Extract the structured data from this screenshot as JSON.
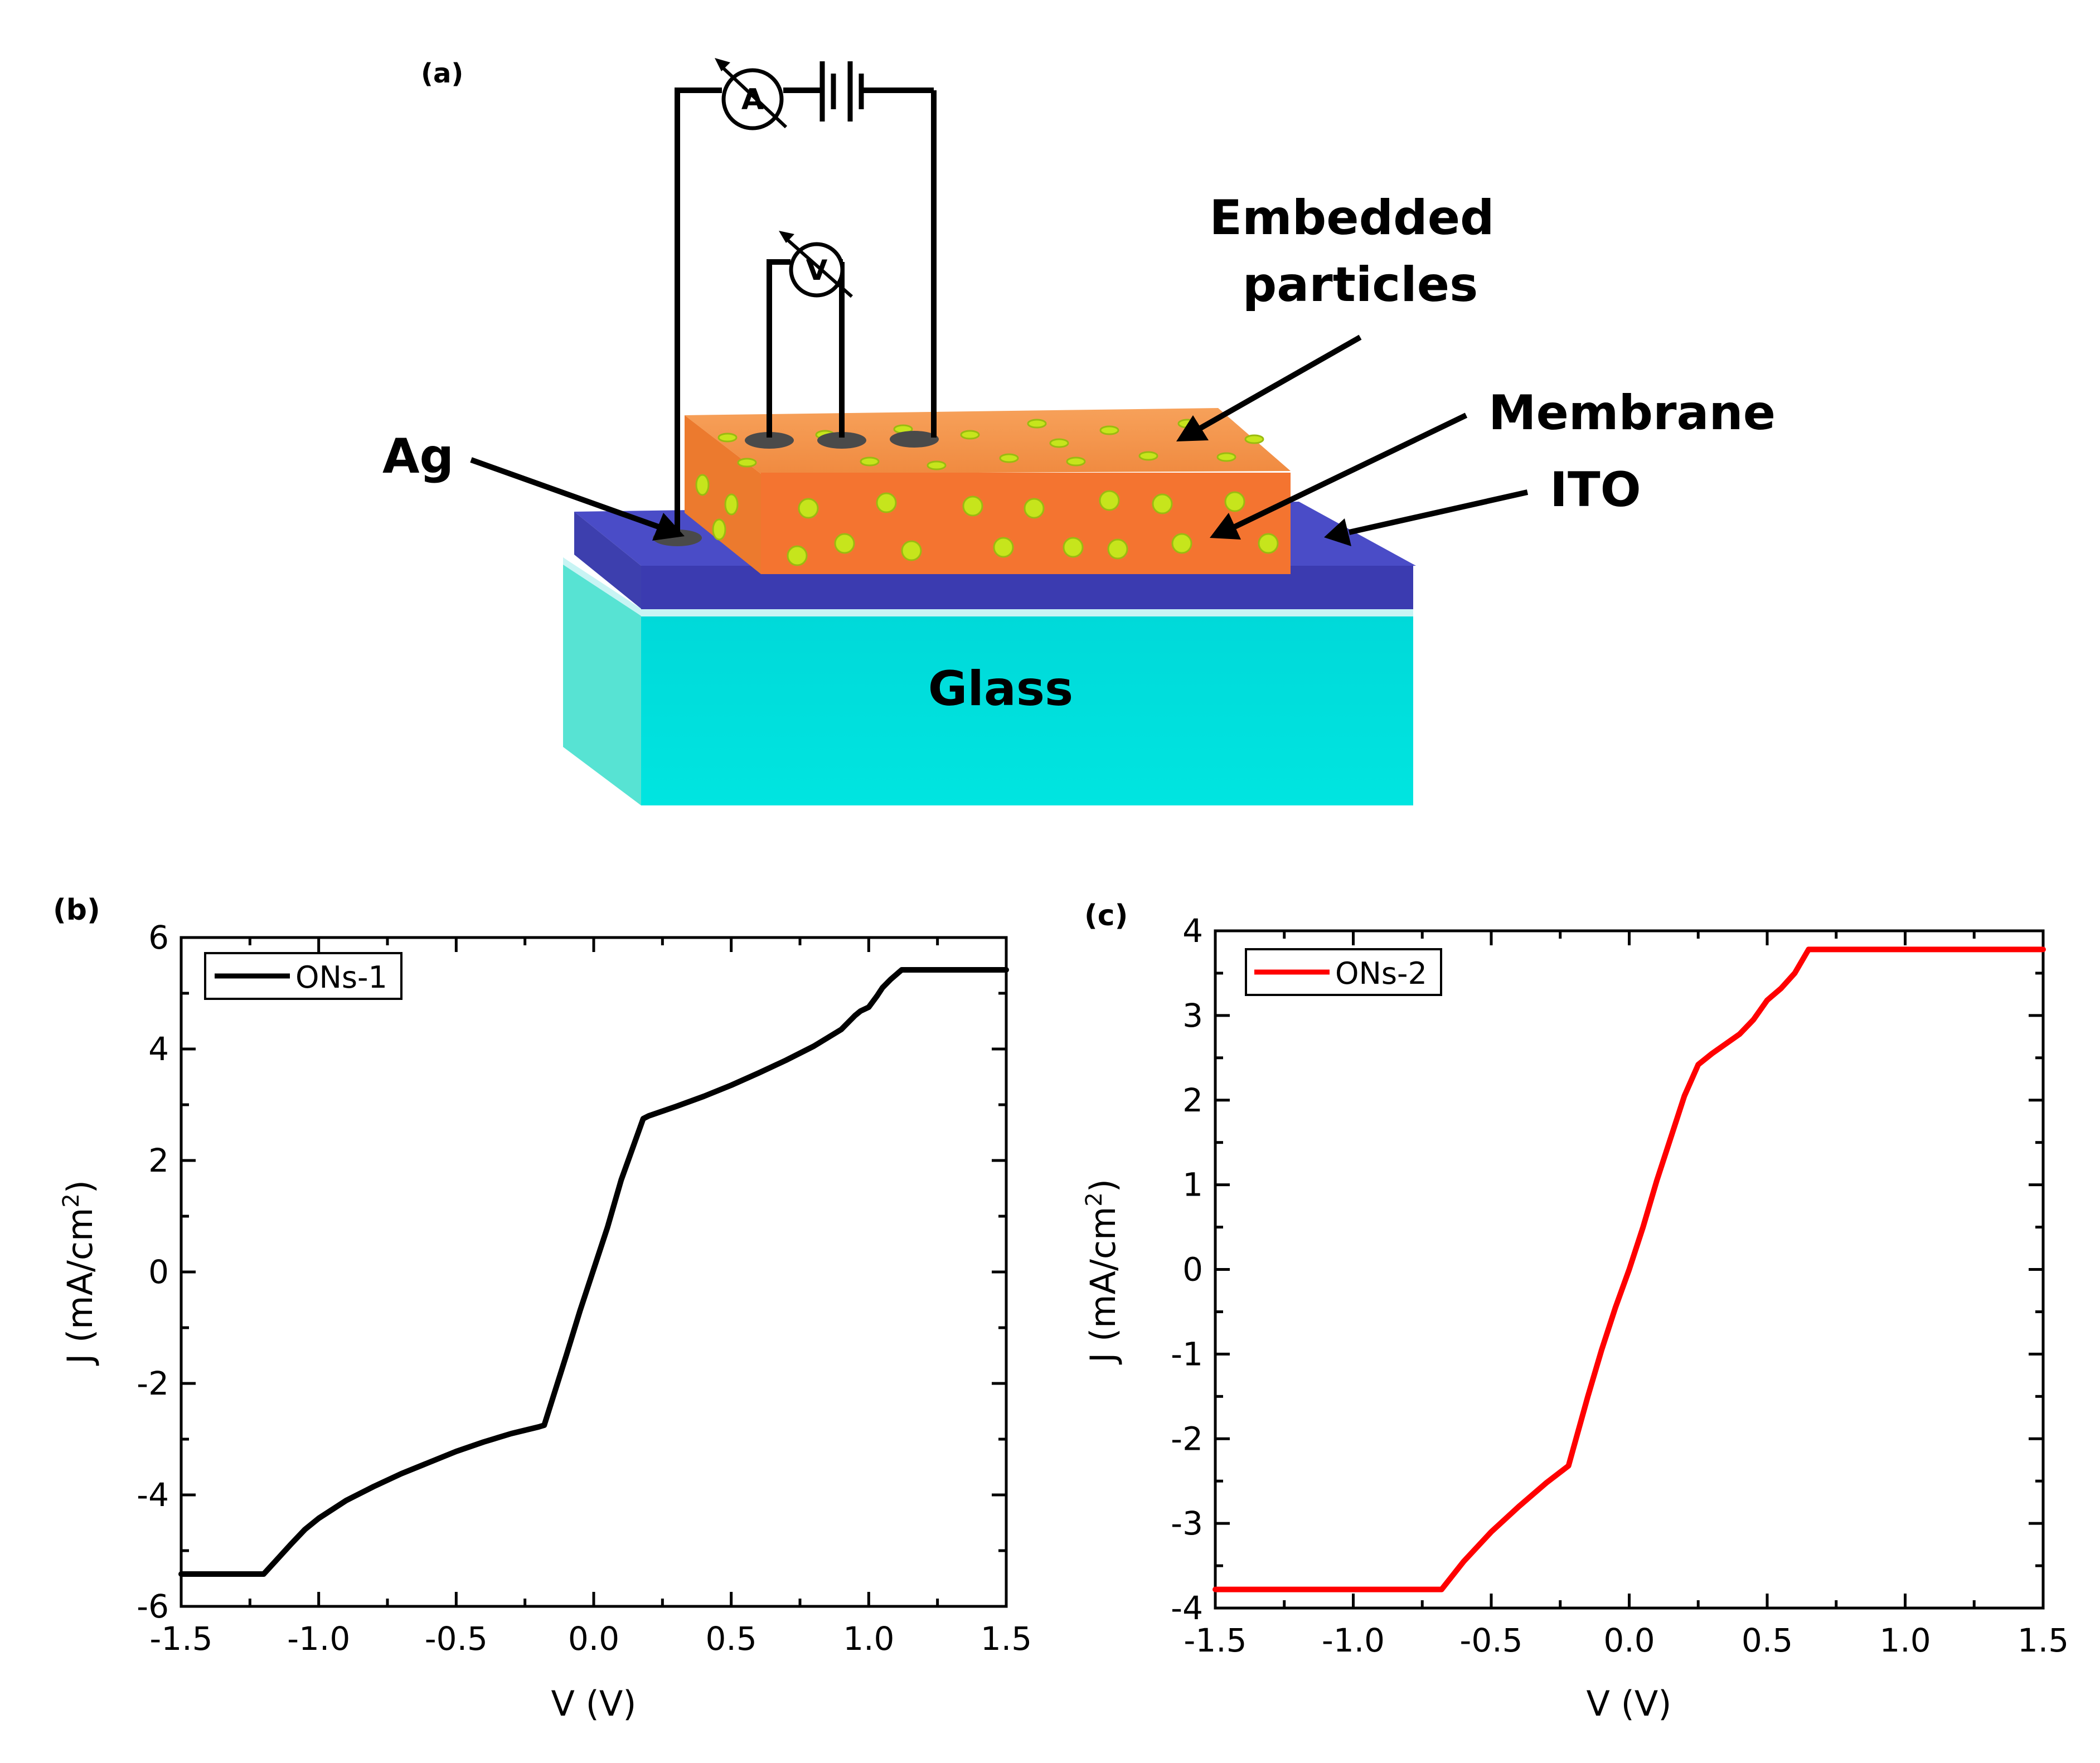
{
  "figure": {
    "panel_a": {
      "label": "(a)",
      "labels": {
        "embedded": "Embedded",
        "particles": "particles",
        "membrane": "Membrane",
        "ito": "ITO",
        "ag": "Ag",
        "glass": "Glass",
        "ammeter": "A",
        "voltmeter": "V"
      },
      "colors": {
        "glass": "#00d9d9",
        "ito": "#4646b4",
        "membrane": "#f07830",
        "particles": "#c8e61e"
      }
    },
    "panel_b": {
      "label": "(b)"
    },
    "panel_c": {
      "label": "(c)"
    }
  },
  "chart_data": [
    {
      "type": "line",
      "panel": "(b)",
      "title": "",
      "xlabel": "V (V)",
      "ylabel_main": "J (mA/cm",
      "ylabel_sup": "2",
      "ylabel_close": ")",
      "xlim": [
        -1.5,
        1.5
      ],
      "ylim": [
        -6,
        6
      ],
      "xticks": [
        -1.5,
        -1.0,
        -0.5,
        0.0,
        0.5,
        1.0,
        1.5
      ],
      "xtick_labels": [
        "-1.5",
        "-1.0",
        "-0.5",
        "0.0",
        "0.5",
        "1.0",
        "1.5"
      ],
      "yticks": [
        -6,
        -4,
        -2,
        0,
        2,
        4,
        6
      ],
      "ytick_labels": [
        "-6",
        "-4",
        "-2",
        "0",
        "2",
        "4",
        "6"
      ],
      "legend_position": "top-left",
      "series": [
        {
          "name": "ONs-1",
          "color": "#000000",
          "x": [
            -1.5,
            -1.2,
            -1.15,
            -1.1,
            -1.05,
            -1.0,
            -0.9,
            -0.8,
            -0.7,
            -0.6,
            -0.5,
            -0.4,
            -0.3,
            -0.2,
            -0.18,
            -0.1,
            -0.05,
            0.0,
            0.05,
            0.1,
            0.18,
            0.2,
            0.3,
            0.4,
            0.5,
            0.6,
            0.7,
            0.8,
            0.9,
            0.95,
            0.97,
            1.0,
            1.03,
            1.05,
            1.08,
            1.12,
            1.5
          ],
          "y": [
            -5.42,
            -5.42,
            -5.15,
            -4.88,
            -4.62,
            -4.42,
            -4.1,
            -3.85,
            -3.62,
            -3.42,
            -3.22,
            -3.05,
            -2.9,
            -2.78,
            -2.75,
            -1.5,
            -0.7,
            0.05,
            0.8,
            1.65,
            2.75,
            2.8,
            2.97,
            3.15,
            3.35,
            3.57,
            3.8,
            4.05,
            4.35,
            4.6,
            4.68,
            4.75,
            4.95,
            5.1,
            5.25,
            5.42,
            5.42
          ]
        }
      ]
    },
    {
      "type": "line",
      "panel": "(c)",
      "title": "",
      "xlabel": "V (V)",
      "ylabel_main": "J (mA/cm",
      "ylabel_sup": "2",
      "ylabel_close": ")",
      "xlim": [
        -1.5,
        1.5
      ],
      "ylim": [
        -4,
        4
      ],
      "xticks": [
        -1.5,
        -1.0,
        -0.5,
        0.0,
        0.5,
        1.0,
        1.5
      ],
      "xtick_labels": [
        "-1.5",
        "-1.0",
        "-0.5",
        "0.0",
        "0.5",
        "1.0",
        "1.5"
      ],
      "yticks": [
        -4,
        -3,
        -2,
        -1,
        0,
        1,
        2,
        3,
        4
      ],
      "ytick_labels": [
        "-4",
        "-3",
        "-2",
        "-1",
        "0",
        "1",
        "2",
        "3",
        "4"
      ],
      "legend_position": "top-left",
      "series": [
        {
          "name": "ONs-2",
          "color": "#ff0000",
          "x": [
            -1.5,
            -0.68,
            -0.6,
            -0.5,
            -0.4,
            -0.3,
            -0.22,
            -0.15,
            -0.1,
            -0.05,
            0.0,
            0.05,
            0.1,
            0.2,
            0.25,
            0.3,
            0.4,
            0.45,
            0.5,
            0.55,
            0.6,
            0.65,
            1.5
          ],
          "y": [
            -3.78,
            -3.78,
            -3.45,
            -3.1,
            -2.8,
            -2.52,
            -2.32,
            -1.5,
            -0.95,
            -0.45,
            0.0,
            0.5,
            1.05,
            2.05,
            2.42,
            2.55,
            2.78,
            2.95,
            3.18,
            3.32,
            3.5,
            3.78,
            3.78
          ]
        }
      ]
    }
  ]
}
